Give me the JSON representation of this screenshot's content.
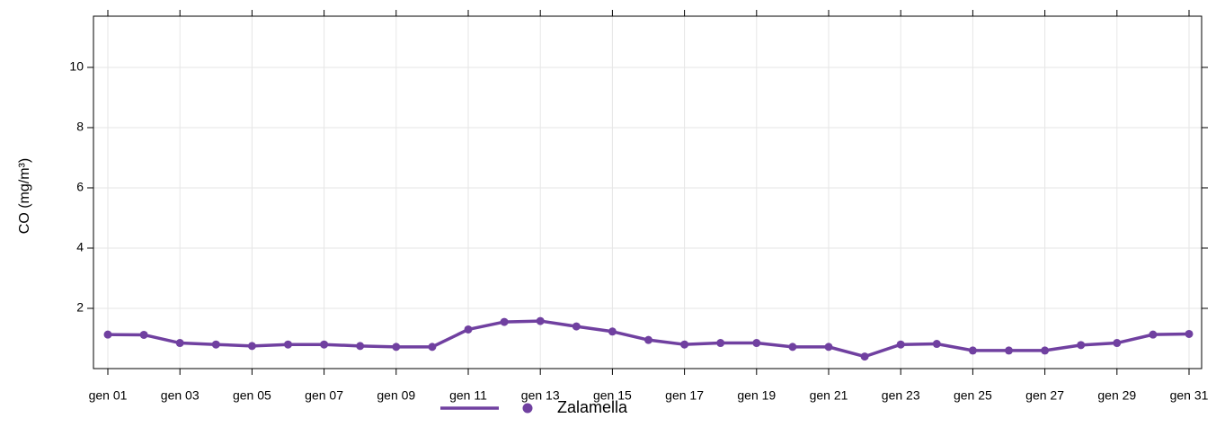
{
  "chart_data": {
    "type": "line",
    "ylabel": "CO (mg/m³)",
    "categories": [
      "gen 01",
      null,
      "gen 03",
      null,
      "gen 05",
      null,
      "gen 07",
      null,
      "gen 09",
      null,
      "gen 11",
      null,
      "gen 13",
      null,
      "gen 15",
      null,
      "gen 17",
      null,
      "gen 19",
      null,
      "gen 21",
      null,
      "gen 23",
      null,
      "gen 25",
      null,
      "gen 27",
      null,
      "gen 29",
      null,
      "gen 31"
    ],
    "series": [
      {
        "name": "Zalamella",
        "color": "#7040a0",
        "values": [
          1.13,
          1.12,
          0.85,
          0.8,
          0.75,
          0.8,
          0.8,
          0.75,
          0.72,
          0.72,
          1.3,
          1.55,
          1.58,
          1.4,
          1.23,
          0.95,
          0.8,
          0.85,
          0.85,
          0.72,
          0.72,
          0.4,
          0.8,
          0.82,
          0.6,
          0.6,
          0.6,
          0.78,
          0.85,
          1.13,
          1.15
        ]
      }
    ],
    "ylim": [
      0,
      11.7
    ],
    "yticks": [
      2,
      4,
      6,
      8,
      10
    ],
    "grid": true,
    "legend": "bottom"
  }
}
